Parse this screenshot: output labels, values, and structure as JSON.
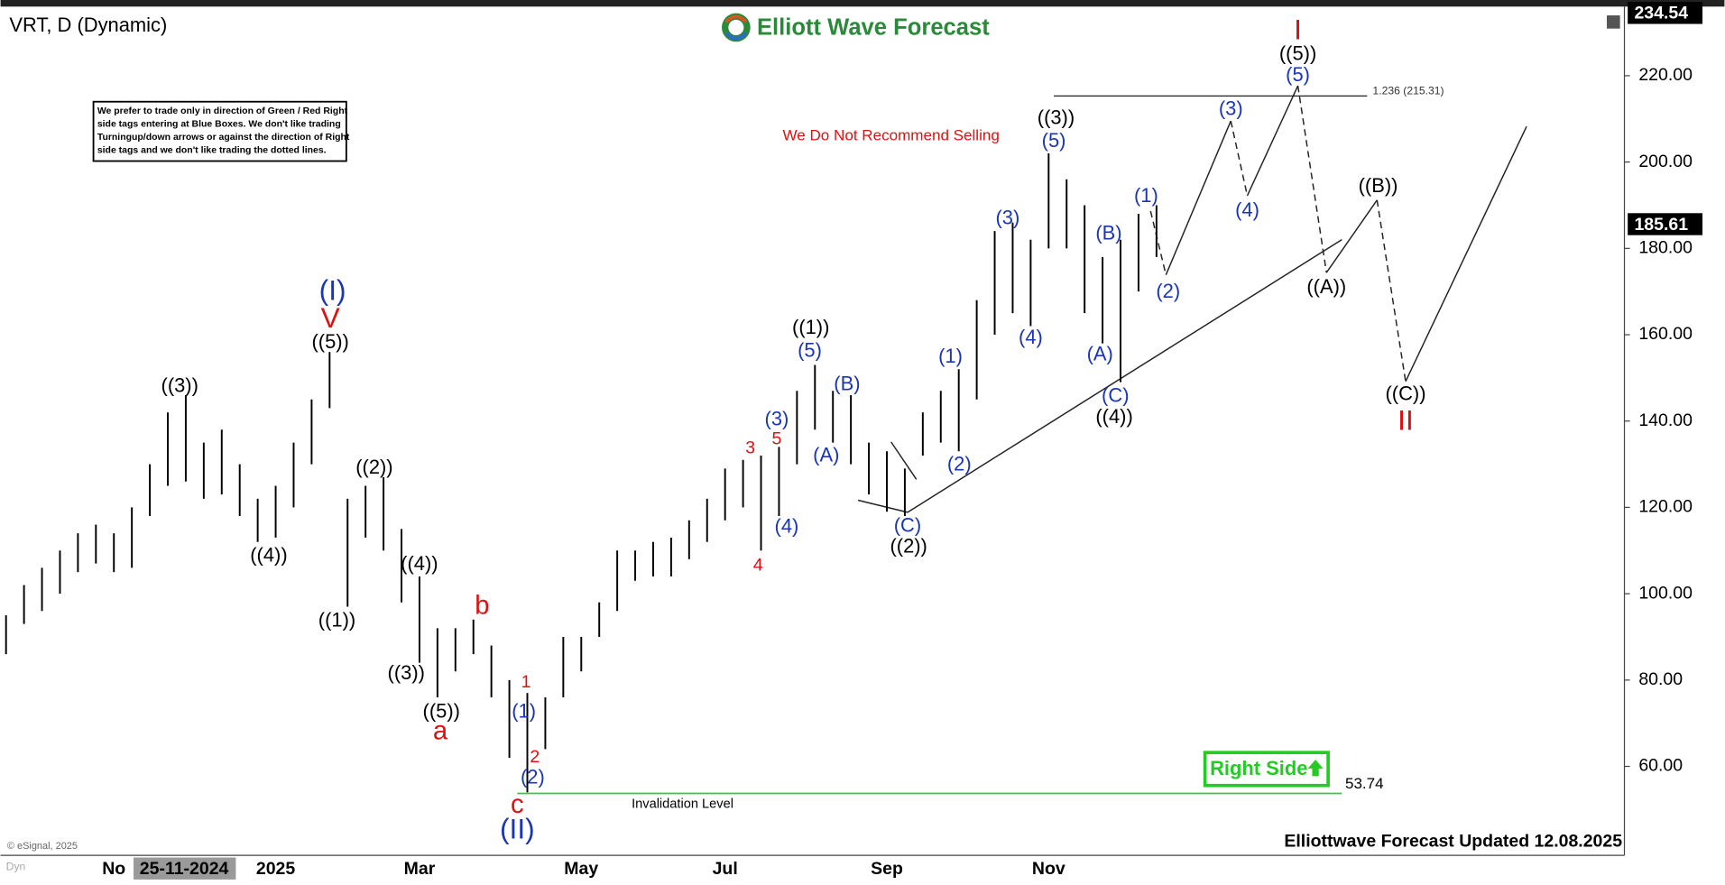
{
  "chart_data": {
    "type": "ohlc",
    "title": "VRT, D (Dynamic)",
    "logo": "Elliott Wave Forecast",
    "footer": "Elliottwave Forecast Updated 12.08.2025",
    "copyright": "© eSignal, 2025",
    "corner_label": "Dyn",
    "cursor_date": "25-11-2024",
    "bar_color": "#000000",
    "categories": [
      null,
      null,
      null,
      null,
      null,
      null,
      "No",
      null,
      null,
      null,
      null,
      null,
      null,
      null,
      null,
      "2025",
      null,
      null,
      null,
      null,
      null,
      null,
      null,
      "Mar",
      null,
      null,
      null,
      null,
      null,
      null,
      null,
      null,
      "May",
      null,
      null,
      null,
      null,
      null,
      null,
      null,
      "Jul",
      null,
      null,
      null,
      null,
      null,
      null,
      null,
      null,
      "Sep",
      null,
      null,
      null,
      null,
      null,
      null,
      null,
      null,
      "Nov",
      null,
      null,
      null,
      null,
      null,
      null
    ],
    "high": [
      95,
      102,
      106,
      110,
      114,
      116,
      114,
      120,
      130,
      142,
      146,
      135,
      138,
      130,
      122,
      125,
      135,
      145,
      156,
      122,
      125,
      127,
      115,
      104,
      92,
      92,
      94,
      88,
      80,
      77,
      76,
      90,
      90,
      98,
      110,
      110,
      112,
      113,
      117,
      122,
      129,
      131,
      132,
      134,
      147,
      153,
      147,
      146,
      135,
      133,
      129,
      142,
      147,
      152,
      168,
      184,
      186,
      182,
      202,
      196,
      190,
      178,
      182,
      188,
      190
    ],
    "low": [
      86,
      93,
      96,
      100,
      105,
      107,
      105,
      106,
      118,
      125,
      126,
      122,
      123,
      118,
      112,
      113,
      120,
      130,
      143,
      97,
      113,
      110,
      98,
      84,
      76,
      82,
      86,
      76,
      62,
      54,
      64,
      76,
      82,
      90,
      96,
      103,
      104,
      104,
      108,
      112,
      117,
      120,
      110,
      118,
      130,
      138,
      135,
      130,
      123,
      119,
      118,
      132,
      135,
      133,
      145,
      160,
      165,
      162,
      180,
      180,
      165,
      158,
      149,
      170,
      178
    ],
    "ylim": [
      39.4,
      235.5
    ],
    "yticks": [
      {
        "value": 60,
        "label": "60.00"
      },
      {
        "value": 80,
        "label": "80.00"
      },
      {
        "value": 100,
        "label": "100.00"
      },
      {
        "value": 120,
        "label": "120.00"
      },
      {
        "value": 140,
        "label": "140.00"
      },
      {
        "value": 160,
        "label": "160.00"
      },
      {
        "value": 180,
        "label": "180.00"
      },
      {
        "value": 200,
        "label": "200.00"
      },
      {
        "value": 220,
        "label": "220.00"
      }
    ],
    "price_tags": [
      234.54,
      185.61
    ],
    "fib_level": {
      "value": 215.31,
      "label": "1.236 (215.31)"
    },
    "invalidation": {
      "value": 53.74,
      "label": "Invalidation Level",
      "color": "#33cc33"
    },
    "right_side": {
      "text": "Right Side",
      "color": "#22cc22"
    },
    "note": {
      "text": "We Do Not Recommend Selling",
      "color": "#dd1111"
    },
    "disclaimer": [
      "We prefer to trade only in direction of Green / Red Right",
      "side tags entering at Blue Boxes. We don't like trading",
      "Turningup/down arrows or against the direction of Right",
      "side tags and we don't like trading the dotted lines."
    ],
    "wave_labels": [
      {
        "text": "((3))",
        "color": "#000000"
      },
      {
        "text": "((4))",
        "color": "#000000"
      },
      {
        "text": "((5))",
        "color": "#000000"
      },
      {
        "text": "((1))",
        "color": "#000000"
      },
      {
        "text": "((2))",
        "color": "#000000"
      },
      {
        "text": "((4))",
        "color": "#000000"
      },
      {
        "text": "((3))",
        "color": "#000000"
      },
      {
        "text": "((5))",
        "color": "#000000"
      },
      {
        "text": "((1))",
        "color": "#000000"
      },
      {
        "text": "((2))",
        "color": "#000000"
      },
      {
        "text": "((3))",
        "color": "#000000"
      },
      {
        "text": "((4))",
        "color": "#000000"
      },
      {
        "text": "((5))",
        "color": "#000000"
      },
      {
        "text": "((A))",
        "color": "#000000"
      },
      {
        "text": "((B))",
        "color": "#000000"
      },
      {
        "text": "((C))",
        "color": "#000000"
      },
      {
        "text": "(I)",
        "color": "#1a35b5"
      },
      {
        "text": "(II)",
        "color": "#1a35b5"
      },
      {
        "text": "(1)",
        "color": "#1a35b5"
      },
      {
        "text": "(2)",
        "color": "#1a35b5"
      },
      {
        "text": "(3)",
        "color": "#1a35b5"
      },
      {
        "text": "(5)",
        "color": "#1a35b5"
      },
      {
        "text": "(4)",
        "color": "#1a35b5"
      },
      {
        "text": "(A)",
        "color": "#1a35b5"
      },
      {
        "text": "(B)",
        "color": "#1a35b5"
      },
      {
        "text": "(C)",
        "color": "#1a35b5"
      },
      {
        "text": "(1)",
        "color": "#1a35b5"
      },
      {
        "text": "(2)",
        "color": "#1a35b5"
      },
      {
        "text": "(3)",
        "color": "#1a35b5"
      },
      {
        "text": "(4)",
        "color": "#1a35b5"
      },
      {
        "text": "(5)",
        "color": "#1a35b5"
      },
      {
        "text": "(A)",
        "color": "#1a35b5"
      },
      {
        "text": "(B)",
        "color": "#1a35b5"
      },
      {
        "text": "(C)",
        "color": "#1a35b5"
      },
      {
        "text": "(1)",
        "color": "#1a35b5"
      },
      {
        "text": "(2)",
        "color": "#1a35b5"
      },
      {
        "text": "(3)",
        "color": "#1a35b5"
      },
      {
        "text": "(4)",
        "color": "#1a35b5"
      },
      {
        "text": "(5)",
        "color": "#1a35b5"
      },
      {
        "text": "V",
        "color": "#dd1111"
      },
      {
        "text": "a",
        "color": "#dd1111"
      },
      {
        "text": "b",
        "color": "#dd1111"
      },
      {
        "text": "c",
        "color": "#dd1111"
      },
      {
        "text": "1",
        "color": "#dd1111"
      },
      {
        "text": "2",
        "color": "#dd1111"
      },
      {
        "text": "3",
        "color": "#dd1111"
      },
      {
        "text": "4",
        "color": "#dd1111"
      },
      {
        "text": "5",
        "color": "#dd1111"
      },
      {
        "text": "I",
        "color": "#dd1111"
      },
      {
        "text": "II",
        "color": "#dd1111"
      }
    ]
  }
}
